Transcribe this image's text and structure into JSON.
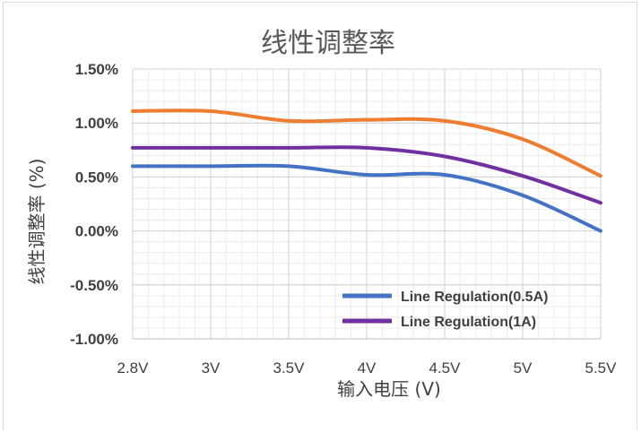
{
  "chart_data": {
    "type": "line",
    "title": "线性调整率",
    "xlabel": "输入电压 (V)",
    "ylabel": "线性调整率 (%)",
    "x_tick_labels": [
      "2.8V",
      "3V",
      "3.5V",
      "4V",
      "4.5V",
      "5V",
      "5.5V"
    ],
    "y_tick_labels": [
      "1.50%",
      "1.00%",
      "0.50%",
      "0.00%",
      "-0.50%",
      "-1.00%"
    ],
    "x_ticks": [
      2.8,
      3.0,
      3.5,
      4.0,
      4.5,
      5.0,
      5.5
    ],
    "y_ticks": [
      1.5,
      1.0,
      0.5,
      0.0,
      -0.5,
      -1.0
    ],
    "xlim": [
      2.8,
      5.5
    ],
    "ylim": [
      -1.0,
      1.5
    ],
    "grid": true,
    "legend_position": "bottom-right",
    "series": [
      {
        "name": "Line Regulation(0.5A)",
        "color": "#4472c4",
        "x": [
          2.8,
          3.0,
          3.5,
          4.0,
          4.5,
          5.0,
          5.5
        ],
        "values": [
          0.6,
          0.6,
          0.6,
          0.52,
          0.52,
          0.33,
          0.0
        ]
      },
      {
        "name": "Line Regulation(1A)",
        "color": "#7030a0",
        "x": [
          2.8,
          3.0,
          3.5,
          4.0,
          4.5,
          5.0,
          5.5
        ],
        "values": [
          0.77,
          0.77,
          0.77,
          0.77,
          0.69,
          0.51,
          0.26
        ]
      },
      {
        "name": "",
        "color": "#ed7d31",
        "x": [
          2.8,
          3.0,
          3.5,
          4.0,
          4.5,
          5.0,
          5.5
        ],
        "values": [
          1.11,
          1.11,
          1.02,
          1.03,
          1.02,
          0.85,
          0.51
        ]
      }
    ]
  }
}
